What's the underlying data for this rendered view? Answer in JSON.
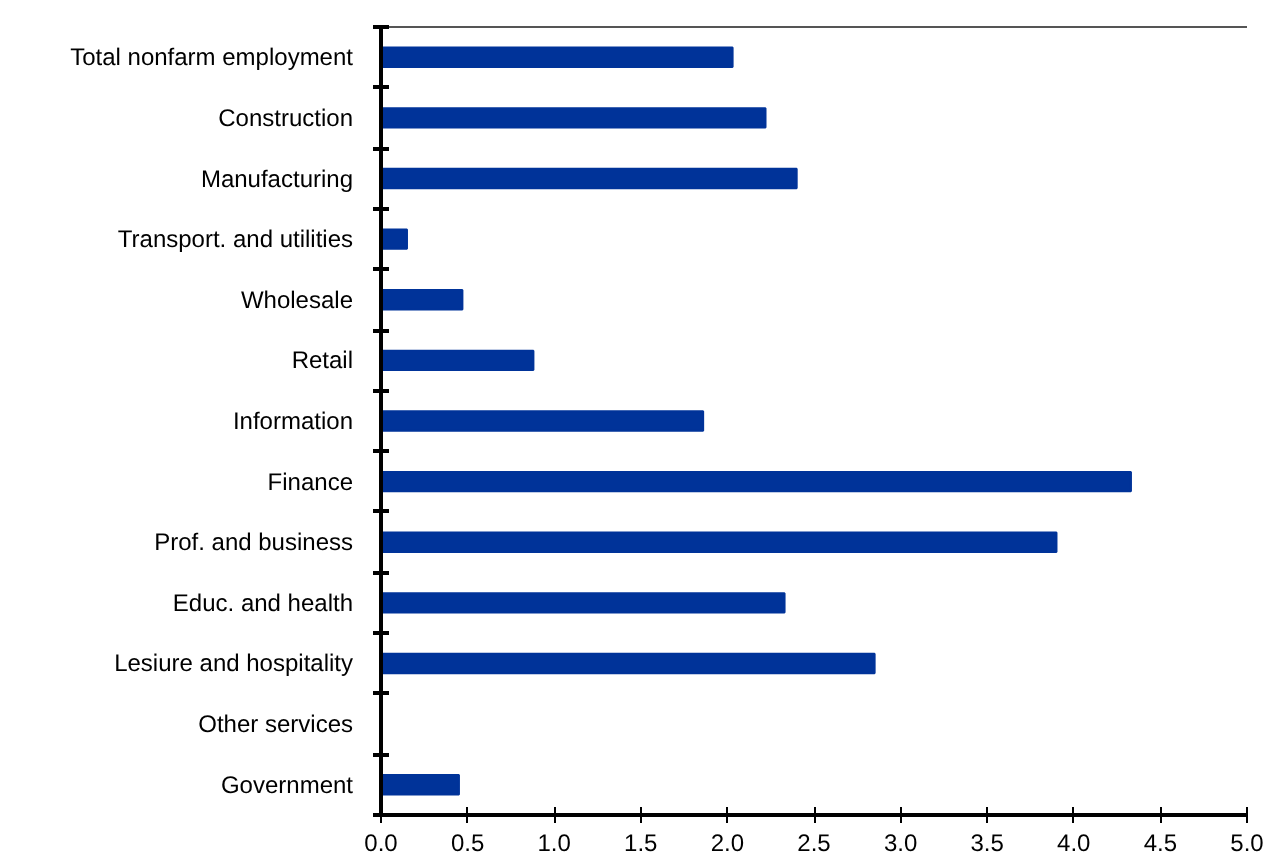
{
  "chart_data": {
    "type": "bar",
    "orientation": "horizontal",
    "categories": [
      "Total nonfarm employment",
      "Construction",
      "Manufacturing",
      "Transport. and utilities",
      "Wholesale",
      "Retail",
      "Information",
      "Finance",
      "Prof. and business",
      "Educ. and health",
      "Lesiure and hospitality",
      "Other services",
      "Government"
    ],
    "values": [
      2.03,
      2.22,
      2.4,
      0.15,
      0.47,
      0.88,
      1.86,
      4.33,
      3.9,
      2.33,
      2.85,
      0,
      0.45
    ],
    "color": "#003399",
    "xlim": [
      0,
      5
    ],
    "xticks": [
      {
        "value": 0,
        "label": "0.0"
      },
      0.5,
      {
        "value": 1,
        "label": "1.0"
      },
      1.5,
      {
        "value": 2,
        "label": "2.0"
      },
      2.5,
      {
        "value": 3,
        "label": "3.0"
      },
      3.5,
      {
        "value": 4,
        "label": "4.0"
      },
      4.5,
      {
        "value": 5,
        "label": "5.0"
      }
    ],
    "grid": false
  }
}
